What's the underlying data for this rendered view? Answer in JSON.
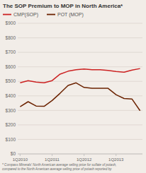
{
  "chart_data": {
    "type": "line",
    "title": "The SOP Premium to MOP in North America*",
    "footnote": "* Compass Minerals' North American average selling price for sulfate of potash,\ncompared to the North American average selling price of potash reported by",
    "categories": [
      "1Q2010",
      null,
      null,
      null,
      "1Q2011",
      null,
      null,
      null,
      "1Q2012",
      null,
      null,
      null,
      "1Q2013",
      null,
      null,
      null
    ],
    "series": [
      {
        "name": "CMP(SOP)",
        "color": "#cc2222",
        "values": [
          490,
          505,
          495,
          490,
          505,
          550,
          570,
          580,
          585,
          580,
          580,
          575,
          568,
          563,
          578,
          588
        ]
      },
      {
        "name": "POT (MOP)",
        "color": "#6b2200",
        "values": [
          325,
          360,
          330,
          328,
          368,
          418,
          472,
          490,
          458,
          452,
          453,
          452,
          408,
          382,
          378,
          298
        ]
      }
    ],
    "ylim": [
      0,
      900
    ],
    "yticks": [
      {
        "value": 0,
        "label": "$0"
      },
      {
        "value": 100,
        "label": "$100"
      },
      {
        "value": 200,
        "label": "$200"
      },
      {
        "value": 300,
        "label": "$300"
      },
      {
        "value": 400,
        "label": "$400"
      },
      {
        "value": 500,
        "label": "$500"
      },
      {
        "value": 600,
        "label": "$600"
      },
      {
        "value": 700,
        "label": "$700"
      },
      {
        "value": 800,
        "label": "$800"
      },
      {
        "value": 900,
        "label": "$900"
      }
    ],
    "grid": true,
    "legend": "top"
  }
}
